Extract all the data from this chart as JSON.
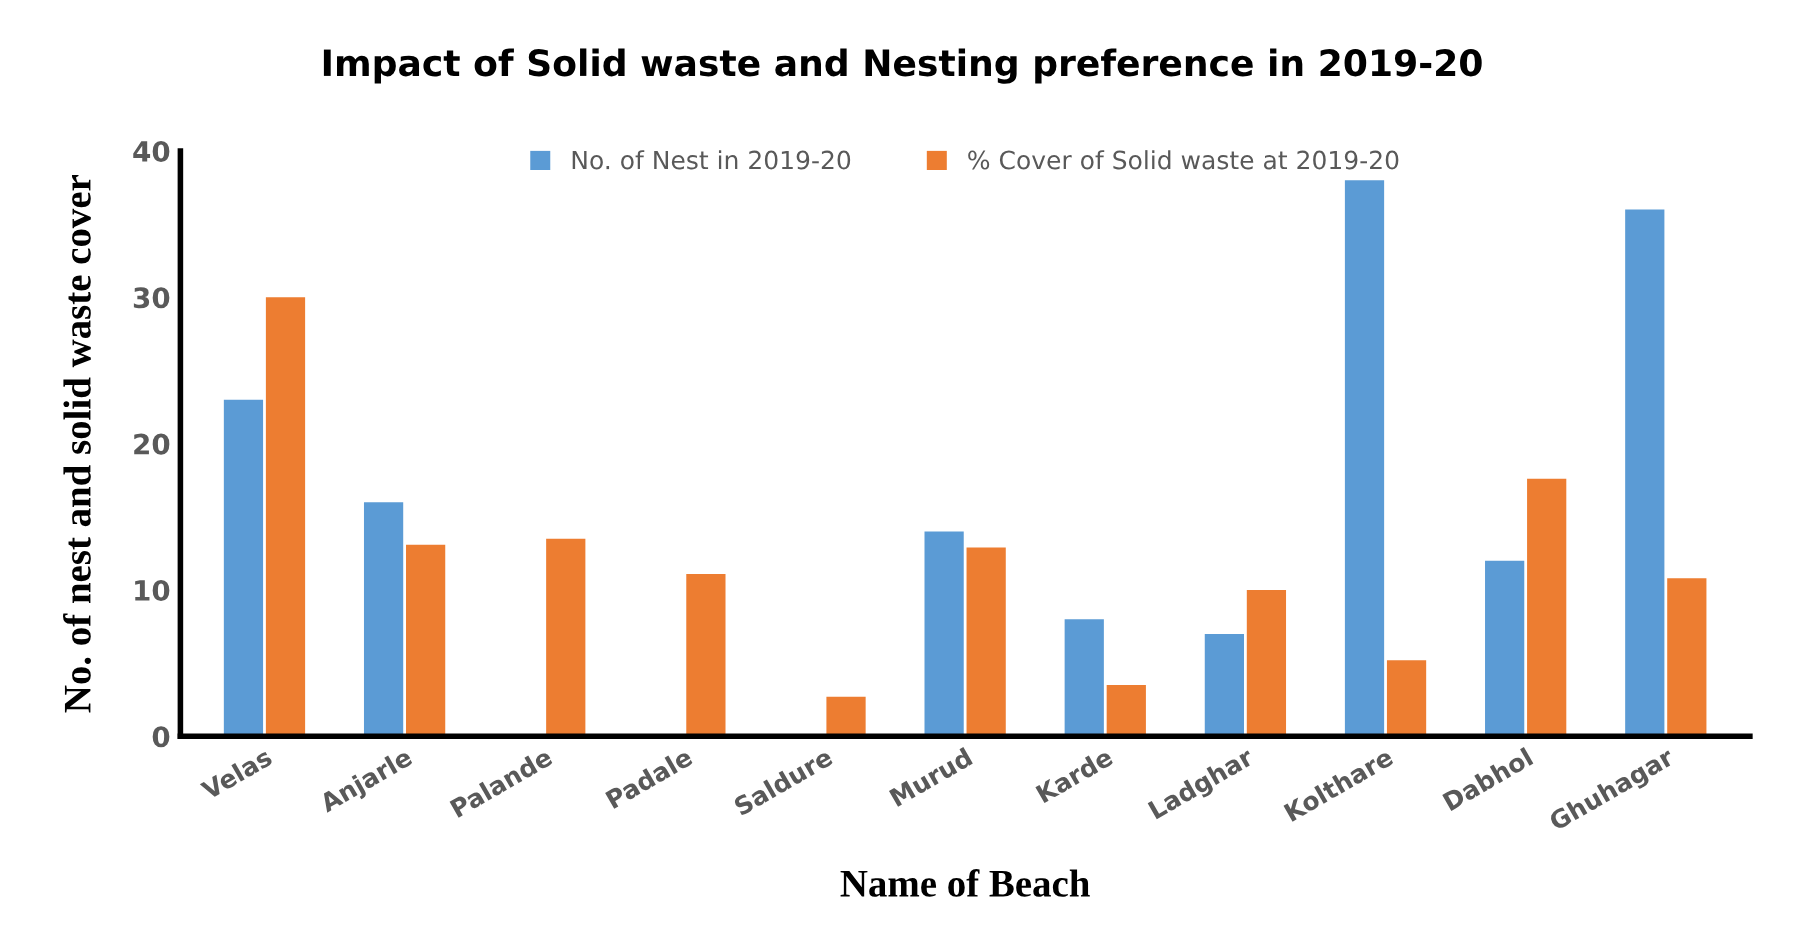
{
  "chart_data": {
    "type": "bar",
    "title": "Impact of Solid waste and Nesting preference in 2019-20",
    "xlabel": "Name of Beach",
    "ylabel": "No. of nest and solid waste cover",
    "categories": [
      "Velas",
      "Anjarle",
      "Palande",
      "Padale",
      "Saldure",
      "Murud",
      "Karde",
      "Ladghar",
      "Kolthare",
      "Dabhol",
      "Ghuhagar"
    ],
    "series": [
      {
        "name": "No. of Nest in 2019-20",
        "color": "#5b9bd5",
        "values": [
          23,
          16,
          0,
          0,
          0,
          14,
          8,
          7,
          38,
          12,
          36
        ]
      },
      {
        "name": "% Cover of Solid waste at 2019-20",
        "color": "#ed7d31",
        "values": [
          30,
          13.1,
          13.5,
          11.1,
          2.7,
          12.9,
          3.5,
          10,
          5.2,
          17.6,
          10.8
        ]
      }
    ],
    "ylim": [
      0,
      40
    ],
    "yticks": [
      0,
      10,
      20,
      30,
      40
    ],
    "grid": false,
    "legend": "top"
  }
}
